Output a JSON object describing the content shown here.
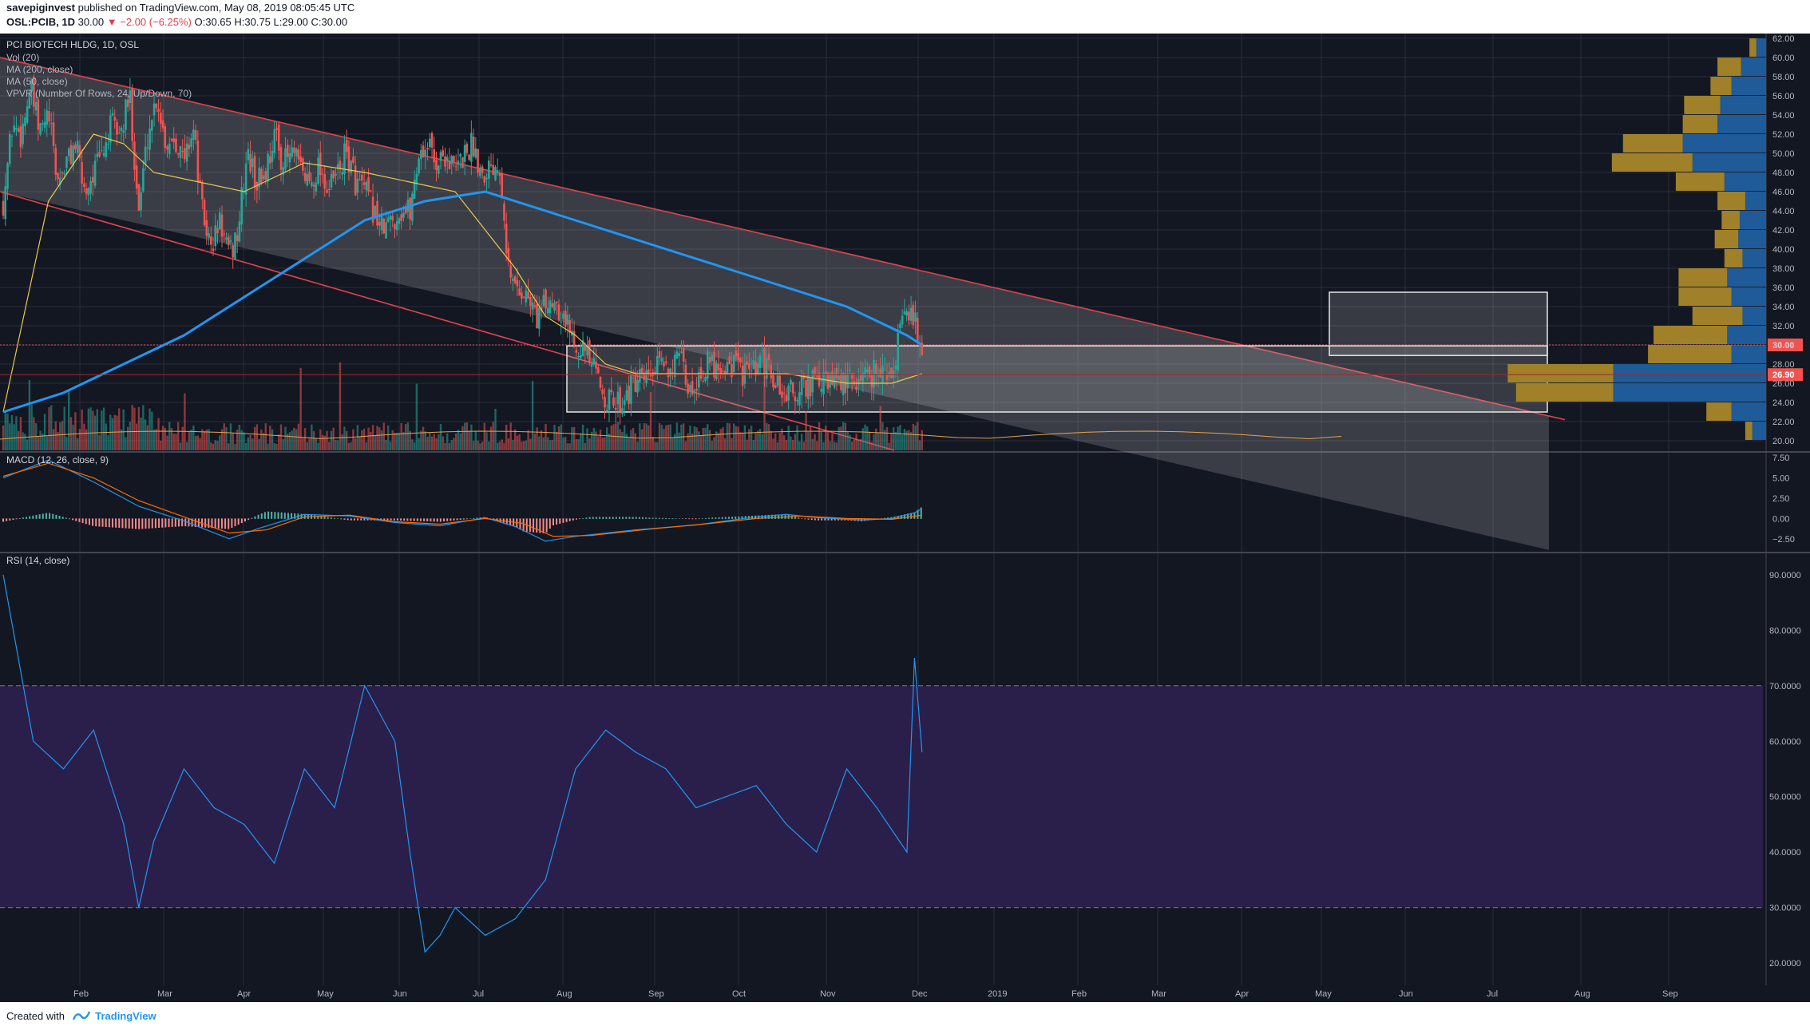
{
  "header": {
    "author": "savepiginvest",
    "published_text": "published on TradingView.com, May 08, 2019 08:05:45 UTC",
    "symbol": "OSL:PCIB, 1D",
    "last": "30.00",
    "change": "−2.00 (−6.25%)",
    "ohlc": "O:30.65 H:30.75 L:29.00 C:30.00"
  },
  "footer": {
    "created_with": "Created with",
    "brand": "TradingView"
  },
  "colors": {
    "background": "#131722",
    "up": "#26a69a",
    "down": "#ef5350",
    "ma200": "#2196f3",
    "ma50": "#e8c94a",
    "volume_ma": "#e8a24a",
    "macd": "#2196f3",
    "signal": "#ff6d00",
    "rsi": "#2196f3",
    "rsi_band": "#2a1f4a",
    "vpvr_up": "#1f5a99",
    "vpvr_down": "#a08028",
    "channel": "#e0424e"
  },
  "chart_data": [
    {
      "type": "candlestick",
      "title": "PCI BIOTECH HLDG, 1D, OSL",
      "indicators": [
        "Vol (20)",
        "MA (200, close)",
        "MA (50, close)",
        "VPVR (Number Of Rows, 24, Up/Down, 70)"
      ],
      "x_ticks": [
        "Feb",
        "Mar",
        "Apr",
        "May",
        "Jun",
        "Jul",
        "Aug",
        "Sep",
        "Oct",
        "Nov",
        "Dec",
        "2019",
        "Feb",
        "Mar",
        "Apr",
        "May",
        "Jun",
        "Jul",
        "Aug",
        "Sep"
      ],
      "y_ticks": [
        "20.00",
        "22.00",
        "24.00",
        "26.00",
        "28.00",
        "30.00",
        "32.00",
        "34.00",
        "36.00",
        "38.00",
        "40.00",
        "42.00",
        "44.00",
        "46.00",
        "48.00",
        "50.00",
        "52.00",
        "54.00",
        "56.00",
        "58.00",
        "60.00",
        "62.00"
      ],
      "ylim": [
        19.0,
        62.5
      ],
      "price_labels": [
        "30.00",
        "26.90"
      ],
      "close_series": [
        [
          0,
          45
        ],
        [
          6,
          53
        ],
        [
          12,
          52
        ],
        [
          18,
          57
        ],
        [
          24,
          52
        ],
        [
          30,
          54
        ],
        [
          36,
          47
        ],
        [
          42,
          49
        ],
        [
          48,
          51
        ],
        [
          54,
          46
        ],
        [
          60,
          48
        ],
        [
          66,
          50
        ],
        [
          72,
          53
        ],
        [
          78,
          52
        ],
        [
          84,
          56
        ],
        [
          90,
          44
        ],
        [
          96,
          52
        ],
        [
          102,
          56
        ],
        [
          108,
          51
        ],
        [
          114,
          52
        ],
        [
          120,
          49
        ],
        [
          126,
          53
        ],
        [
          132,
          44
        ],
        [
          138,
          40
        ],
        [
          144,
          43
        ],
        [
          150,
          39
        ],
        [
          156,
          42
        ],
        [
          162,
          50
        ],
        [
          168,
          47
        ],
        [
          174,
          48
        ],
        [
          180,
          52
        ],
        [
          186,
          49
        ],
        [
          192,
          50
        ],
        [
          198,
          48
        ],
        [
          204,
          47
        ],
        [
          210,
          49
        ],
        [
          216,
          46
        ],
        [
          222,
          48
        ],
        [
          228,
          50
        ],
        [
          234,
          47
        ],
        [
          240,
          46
        ],
        [
          246,
          44
        ],
        [
          252,
          42
        ],
        [
          258,
          43
        ],
        [
          264,
          44
        ],
        [
          270,
          44
        ],
        [
          276,
          50
        ],
        [
          282,
          51
        ],
        [
          288,
          49
        ],
        [
          294,
          50
        ],
        [
          300,
          48
        ],
        [
          306,
          50
        ],
        [
          312,
          51
        ],
        [
          318,
          48
        ],
        [
          324,
          49
        ],
        [
          330,
          49
        ],
        [
          336,
          37
        ],
        [
          342,
          36
        ],
        [
          348,
          35
        ],
        [
          354,
          33
        ],
        [
          360,
          34
        ],
        [
          366,
          35
        ],
        [
          372,
          33
        ],
        [
          378,
          31
        ],
        [
          384,
          30
        ],
        [
          390,
          28
        ],
        [
          396,
          26
        ],
        [
          402,
          24
        ],
        [
          408,
          24
        ],
        [
          414,
          25
        ],
        [
          420,
          26
        ],
        [
          426,
          26
        ],
        [
          432,
          27
        ],
        [
          438,
          28
        ],
        [
          444,
          28
        ],
        [
          450,
          28
        ],
        [
          456,
          25
        ],
        [
          462,
          27
        ],
        [
          468,
          28
        ],
        [
          474,
          28
        ],
        [
          480,
          28
        ],
        [
          486,
          28
        ],
        [
          492,
          27
        ],
        [
          498,
          27
        ],
        [
          504,
          28
        ],
        [
          510,
          27
        ],
        [
          516,
          25
        ],
        [
          522,
          25
        ],
        [
          528,
          25
        ],
        [
          534,
          26
        ],
        [
          540,
          26
        ],
        [
          546,
          26
        ],
        [
          552,
          26
        ],
        [
          558,
          26
        ],
        [
          564,
          26
        ],
        [
          570,
          27
        ],
        [
          576,
          27
        ],
        [
          582,
          28
        ],
        [
          588,
          26
        ],
        [
          594,
          30
        ],
        [
          600,
          34
        ],
        [
          606,
          32
        ],
        [
          610,
          30
        ]
      ],
      "ma50": [
        [
          0,
          23
        ],
        [
          30,
          45
        ],
        [
          60,
          52
        ],
        [
          80,
          51
        ],
        [
          100,
          48
        ],
        [
          130,
          47
        ],
        [
          160,
          46
        ],
        [
          200,
          49
        ],
        [
          240,
          48
        ],
        [
          270,
          47
        ],
        [
          300,
          46
        ],
        [
          320,
          42
        ],
        [
          340,
          38
        ],
        [
          360,
          33
        ],
        [
          380,
          31
        ],
        [
          400,
          28
        ],
        [
          420,
          27
        ],
        [
          450,
          27
        ],
        [
          480,
          27
        ],
        [
          520,
          27
        ],
        [
          560,
          26
        ],
        [
          590,
          26
        ],
        [
          610,
          27
        ]
      ],
      "ma200": [
        [
          0,
          23
        ],
        [
          40,
          25
        ],
        [
          80,
          28
        ],
        [
          120,
          31
        ],
        [
          160,
          35
        ],
        [
          200,
          39
        ],
        [
          240,
          43
        ],
        [
          280,
          45
        ],
        [
          320,
          46
        ],
        [
          340,
          45
        ],
        [
          360,
          44
        ],
        [
          400,
          42
        ],
        [
          440,
          40
        ],
        [
          480,
          38
        ],
        [
          520,
          36
        ],
        [
          560,
          34
        ],
        [
          600,
          31
        ],
        [
          610,
          30
        ]
      ],
      "vpvr": [
        {
          "price": 21.0,
          "up": 1.0,
          "down": 0.5
        },
        {
          "price": 23.0,
          "up": 2.5,
          "down": 1.8
        },
        {
          "price": 25.0,
          "up": 11.0,
          "down": 7.0
        },
        {
          "price": 27.0,
          "up": 11.0,
          "down": 7.6
        },
        {
          "price": 29.0,
          "up": 2.5,
          "down": 6.0
        },
        {
          "price": 31.0,
          "up": 2.8,
          "down": 5.3
        },
        {
          "price": 33.0,
          "up": 1.7,
          "down": 3.6
        },
        {
          "price": 35.0,
          "up": 2.5,
          "down": 3.8
        },
        {
          "price": 37.0,
          "up": 2.8,
          "down": 3.5
        },
        {
          "price": 39.0,
          "up": 1.7,
          "down": 1.3
        },
        {
          "price": 41.0,
          "up": 2.0,
          "down": 1.7
        },
        {
          "price": 43.0,
          "up": 1.9,
          "down": 1.3
        },
        {
          "price": 45.0,
          "up": 1.5,
          "down": 2.0
        },
        {
          "price": 47.0,
          "up": 3.0,
          "down": 3.5
        },
        {
          "price": 49.0,
          "up": 5.3,
          "down": 5.8
        },
        {
          "price": 51.0,
          "up": 6.0,
          "down": 4.3
        },
        {
          "price": 53.0,
          "up": 3.5,
          "down": 2.5
        },
        {
          "price": 55.0,
          "up": 3.3,
          "down": 2.6
        },
        {
          "price": 57.0,
          "up": 2.5,
          "down": 1.5
        },
        {
          "price": 59.0,
          "up": 1.8,
          "down": 1.7
        },
        {
          "price": 61.0,
          "up": 0.7,
          "down": 0.5
        }
      ]
    },
    {
      "type": "line",
      "title": "MACD (12, 26, close, 9)",
      "y_ticks": [
        "7.50",
        "5.00",
        "2.50",
        "0.00",
        "−2.50"
      ],
      "ylim": [
        -4.0,
        8.2
      ],
      "macd": [
        [
          0,
          5
        ],
        [
          30,
          7.2
        ],
        [
          60,
          4.5
        ],
        [
          90,
          1.5
        ],
        [
          120,
          -0.3
        ],
        [
          150,
          -2.5
        ],
        [
          170,
          -1.2
        ],
        [
          200,
          0.5
        ],
        [
          230,
          0.3
        ],
        [
          260,
          -0.5
        ],
        [
          290,
          -0.9
        ],
        [
          320,
          0.1
        ],
        [
          340,
          -1.0
        ],
        [
          360,
          -2.8
        ],
        [
          380,
          -2.2
        ],
        [
          420,
          -1.4
        ],
        [
          460,
          -0.8
        ],
        [
          500,
          0.2
        ],
        [
          520,
          0.5
        ],
        [
          540,
          0.1
        ],
        [
          570,
          -0.2
        ],
        [
          590,
          0.0
        ],
        [
          605,
          0.7
        ],
        [
          610,
          1.2
        ]
      ],
      "signal": [
        [
          0,
          5.2
        ],
        [
          30,
          6.8
        ],
        [
          60,
          5.0
        ],
        [
          90,
          2.2
        ],
        [
          120,
          0.2
        ],
        [
          150,
          -1.8
        ],
        [
          175,
          -1.4
        ],
        [
          200,
          0.2
        ],
        [
          230,
          0.4
        ],
        [
          260,
          -0.4
        ],
        [
          290,
          -0.7
        ],
        [
          320,
          0.0
        ],
        [
          345,
          -0.6
        ],
        [
          365,
          -2.2
        ],
        [
          390,
          -2.1
        ],
        [
          430,
          -1.3
        ],
        [
          470,
          -0.6
        ],
        [
          500,
          0.0
        ],
        [
          530,
          0.3
        ],
        [
          560,
          0.0
        ],
        [
          590,
          -0.1
        ],
        [
          610,
          0.4
        ]
      ]
    },
    {
      "type": "line",
      "title": "RSI (14, close)",
      "y_ticks": [
        "90.0000",
        "80.0000",
        "70.0000",
        "60.0000",
        "50.0000",
        "40.0000",
        "30.0000",
        "20.0000"
      ],
      "ylim": [
        16.0,
        94.0
      ],
      "band": [
        30,
        70
      ],
      "rsi": [
        [
          0,
          90
        ],
        [
          20,
          60
        ],
        [
          40,
          55
        ],
        [
          60,
          62
        ],
        [
          80,
          45
        ],
        [
          90,
          30
        ],
        [
          100,
          42
        ],
        [
          120,
          55
        ],
        [
          140,
          48
        ],
        [
          160,
          45
        ],
        [
          180,
          38
        ],
        [
          200,
          55
        ],
        [
          220,
          48
        ],
        [
          240,
          70
        ],
        [
          250,
          65
        ],
        [
          260,
          60
        ],
        [
          270,
          40
        ],
        [
          280,
          22
        ],
        [
          290,
          25
        ],
        [
          300,
          30
        ],
        [
          320,
          25
        ],
        [
          340,
          28
        ],
        [
          360,
          35
        ],
        [
          380,
          55
        ],
        [
          400,
          62
        ],
        [
          420,
          58
        ],
        [
          440,
          55
        ],
        [
          460,
          48
        ],
        [
          480,
          50
        ],
        [
          500,
          52
        ],
        [
          520,
          45
        ],
        [
          540,
          40
        ],
        [
          560,
          55
        ],
        [
          580,
          48
        ],
        [
          600,
          40
        ],
        [
          605,
          75
        ],
        [
          610,
          58
        ]
      ]
    }
  ]
}
